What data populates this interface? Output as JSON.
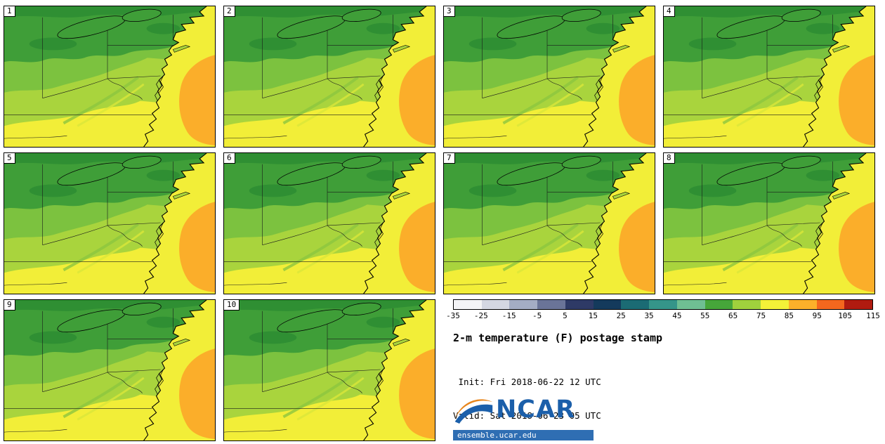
{
  "page": {
    "background": "#ffffff"
  },
  "panels": [
    {
      "num": "1"
    },
    {
      "num": "2"
    },
    {
      "num": "3"
    },
    {
      "num": "4"
    },
    {
      "num": "5"
    },
    {
      "num": "6"
    },
    {
      "num": "7"
    },
    {
      "num": "8"
    },
    {
      "num": "9"
    },
    {
      "num": "10"
    }
  ],
  "colorbar": {
    "colors": [
      "#f4f4f6",
      "#d4d7e2",
      "#a4adc4",
      "#6a7498",
      "#2e3a66",
      "#143a5c",
      "#1b6b74",
      "#359589",
      "#6fbf93",
      "#46a63a",
      "#a0d13d",
      "#f4f138",
      "#fcb02a",
      "#f4671e",
      "#b01b10"
    ],
    "ticks": [
      "-35",
      "-25",
      "-15",
      "-5",
      "5",
      "15",
      "25",
      "35",
      "45",
      "55",
      "65",
      "75",
      "85",
      "95",
      "105",
      "115"
    ],
    "units": "F"
  },
  "info": {
    "title": "2-m temperature (F) postage stamp",
    "init": " Init: Fri 2018-06-22 12 UTC",
    "valid": "Valid: Sat 2018-06-23 05 UTC"
  },
  "logo": {
    "name": "NCAR",
    "url": "ensemble.ucar.edu"
  },
  "palette": {
    "darkest_green": "#2f8f33",
    "dark_green": "#3f9e38",
    "mid_green": "#7cc23f",
    "yellow_green": "#a9d43d",
    "pale_stripe": "#d9e63a",
    "ridge_green": "#8cc63e",
    "yellow": "#f2ee38",
    "orange": "#fbae2a",
    "brand_blue": "#1b5faa",
    "brand_orange": "#e8861c",
    "urlbar_blue": "#2f6eb3",
    "url_text": "#ffffff"
  }
}
